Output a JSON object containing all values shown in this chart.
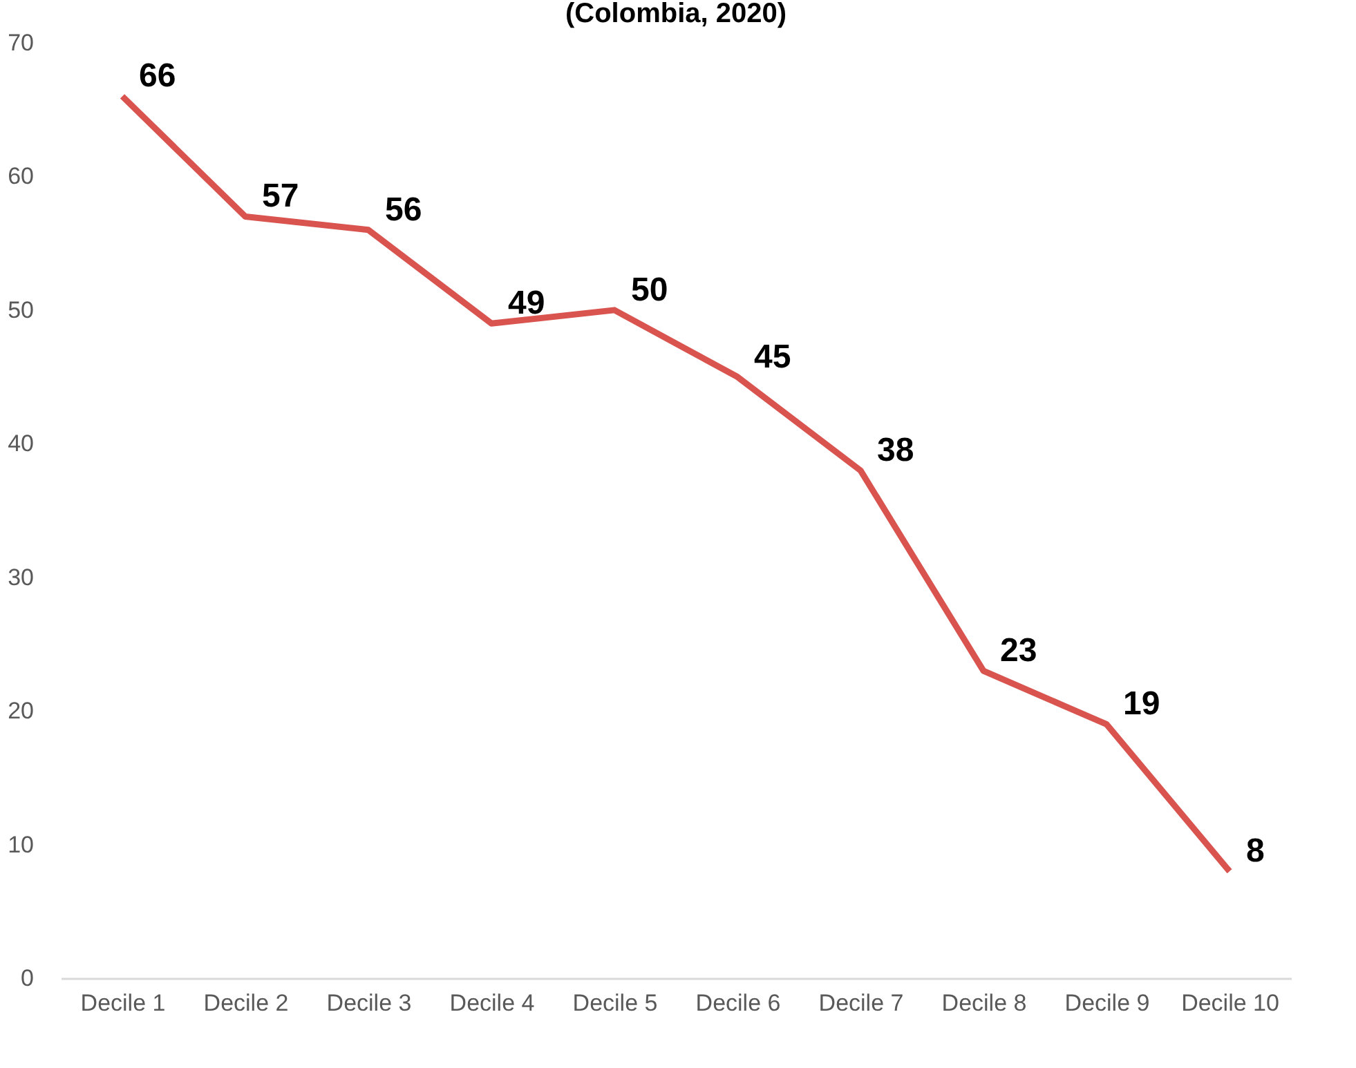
{
  "chart_data": {
    "type": "line",
    "title": "(Colombia, 2020)",
    "categories": [
      "Decile 1",
      "Decile 2",
      "Decile 3",
      "Decile 4",
      "Decile 5",
      "Decile 6",
      "Decile 7",
      "Decile 8",
      "Decile 9",
      "Decile 10"
    ],
    "series": [
      {
        "color": "#d9534f",
        "values": [
          66,
          57,
          56,
          49,
          50,
          45,
          38,
          23,
          19,
          8
        ]
      }
    ],
    "ylim": [
      0,
      70
    ],
    "yticks": [
      0,
      10,
      20,
      30,
      40,
      50,
      60,
      70
    ],
    "grid": false,
    "marker": "none",
    "data_labels": true
  }
}
